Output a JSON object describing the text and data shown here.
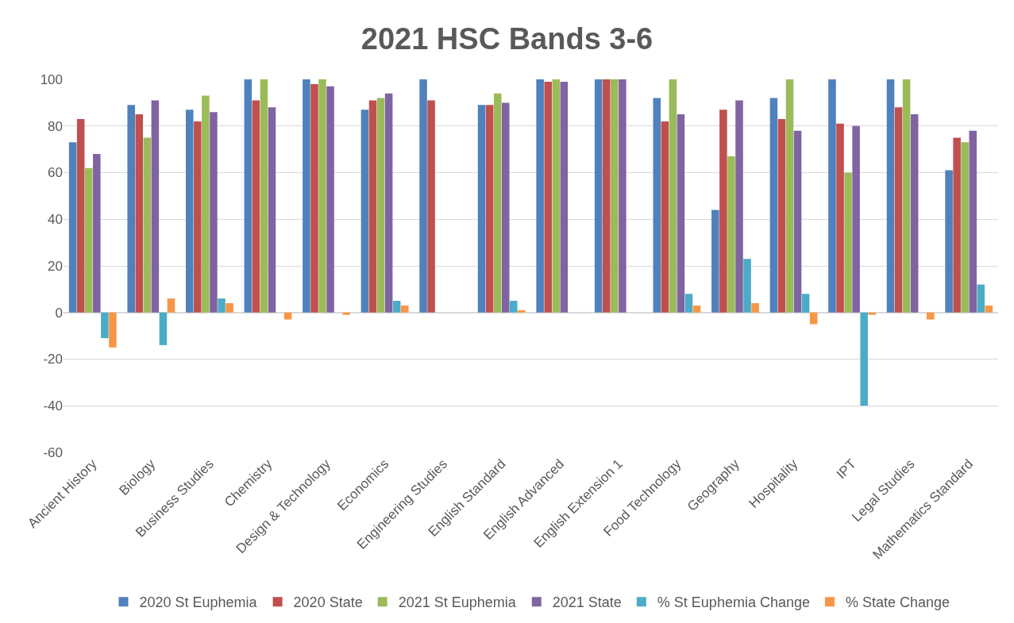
{
  "chart_data": {
    "type": "bar",
    "title": "2021 HSC Bands 3-6",
    "categories": [
      "Ancient History",
      "Biology",
      "Business Studies",
      "Chemistry",
      "Design & Technology",
      "Economics",
      "Engineering Studies",
      "English Standard",
      "English Advanced",
      "English Extension 1",
      "Food Technology",
      "Geography",
      "Hospitality",
      "IPT",
      "Legal Studies",
      "Mathematics Standard"
    ],
    "series": [
      {
        "name": "2020 St Euphemia",
        "color": "#4f81bd",
        "values": [
          73,
          89,
          87,
          100,
          100,
          87,
          100,
          89,
          100,
          100,
          92,
          44,
          92,
          100,
          100,
          61
        ]
      },
      {
        "name": "2020 State",
        "color": "#c0504d",
        "values": [
          83,
          85,
          82,
          91,
          98,
          91,
          91,
          89,
          99,
          100,
          82,
          87,
          83,
          81,
          88,
          75
        ]
      },
      {
        "name": "2021 St Euphemia",
        "color": "#9bbb59",
        "values": [
          62,
          75,
          93,
          100,
          100,
          92,
          null,
          94,
          100,
          100,
          100,
          67,
          100,
          60,
          100,
          73
        ]
      },
      {
        "name": "2021 State",
        "color": "#8064a2",
        "values": [
          68,
          91,
          86,
          88,
          97,
          94,
          null,
          90,
          99,
          100,
          85,
          91,
          78,
          80,
          85,
          78
        ]
      },
      {
        "name": "% St Euphemia Change",
        "color": "#4bacc6",
        "values": [
          -11,
          -14,
          6,
          null,
          null,
          5,
          null,
          5,
          null,
          null,
          8,
          23,
          8,
          -40,
          null,
          12
        ]
      },
      {
        "name": "% State Change",
        "color": "#f79646",
        "values": [
          -15,
          6,
          4,
          -3,
          -1,
          3,
          null,
          1,
          null,
          null,
          3,
          4,
          -5,
          -1,
          -3,
          3
        ]
      }
    ],
    "ylim": [
      -60,
      100
    ],
    "yticks": [
      -60,
      -40,
      -20,
      0,
      20,
      40,
      60,
      80,
      100
    ],
    "grid": "y",
    "legend": "bottom"
  }
}
